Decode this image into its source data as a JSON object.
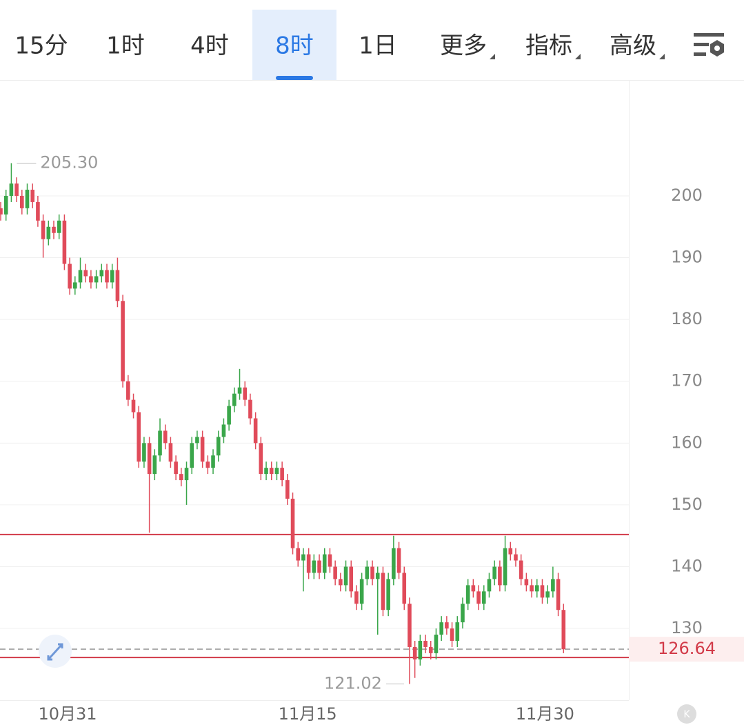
{
  "tabs": [
    "15分",
    "1时",
    "4时",
    "8时",
    "1日",
    "更多",
    "指标",
    "高级"
  ],
  "selected_tab": 3,
  "badge": "K",
  "chart_data": {
    "type": "candlestick",
    "up_color": "#3aa64a",
    "down_color": "#e04b5a",
    "open": [
      198,
      197,
      200,
      202,
      200,
      198,
      201,
      199,
      196,
      193,
      195,
      194,
      196,
      189,
      185,
      186,
      188,
      187,
      186,
      187,
      188,
      186,
      188,
      183,
      170,
      167,
      165,
      157,
      160,
      155,
      158,
      162,
      160,
      157,
      155,
      154,
      156,
      160,
      161,
      157,
      156,
      158,
      161,
      163,
      166,
      168,
      169,
      167,
      164,
      160,
      155,
      156,
      155,
      156,
      154,
      151,
      143,
      141,
      142,
      139,
      141,
      139,
      142,
      140,
      138,
      137,
      140,
      136,
      134,
      138,
      140,
      138,
      139,
      133,
      138,
      143,
      139,
      134,
      127,
      125,
      128,
      127,
      126,
      129,
      131,
      130,
      128,
      131,
      134,
      137,
      136,
      134,
      136,
      138,
      140,
      137,
      143,
      142,
      141,
      138,
      137,
      136,
      137,
      135,
      136,
      138,
      133
    ],
    "high": [
      199,
      201,
      205.3,
      203,
      201,
      202,
      202,
      200,
      197,
      196,
      196,
      197,
      197,
      190,
      187,
      190,
      189,
      188,
      188,
      189,
      189,
      189,
      190,
      184,
      171,
      168,
      166,
      161,
      161,
      159,
      164,
      163,
      161,
      158,
      156,
      157,
      161,
      162,
      162,
      158,
      159,
      162,
      164,
      167,
      169,
      172,
      170,
      168,
      165,
      161,
      157,
      157,
      157,
      157,
      155,
      152,
      144,
      143,
      143,
      142,
      142,
      143,
      143,
      141,
      139,
      141,
      141,
      137,
      139,
      141,
      141,
      140,
      140,
      139,
      145,
      144,
      140,
      135,
      128,
      129,
      129,
      128,
      130,
      132,
      132,
      131,
      132,
      135,
      138,
      138,
      137,
      137,
      139,
      141,
      141,
      145,
      144,
      143,
      142,
      139,
      138,
      138,
      138,
      137,
      140,
      139,
      134
    ],
    "low": [
      196,
      196,
      199,
      199,
      197,
      197,
      198,
      195,
      190,
      192,
      193,
      193,
      188,
      184,
      184,
      185,
      186,
      185,
      185,
      186,
      185,
      185,
      182,
      169,
      166,
      164,
      156,
      156,
      145.5,
      154,
      157,
      159,
      156,
      154,
      153,
      150,
      155,
      159,
      156,
      155,
      155,
      157,
      160,
      162,
      165,
      167,
      166,
      163,
      159,
      154,
      154,
      154,
      154,
      153,
      150,
      142,
      140,
      136,
      138,
      138,
      138,
      138,
      139,
      137,
      136,
      136,
      135,
      133,
      133,
      137,
      137,
      129,
      132,
      132,
      137,
      138,
      133,
      121.02,
      122,
      124,
      126,
      125,
      125,
      128,
      129,
      127,
      127,
      130,
      133,
      135,
      133,
      133,
      135,
      137,
      136,
      136,
      141,
      140,
      137,
      136,
      135,
      135,
      134,
      134,
      135,
      132,
      126
    ],
    "close": [
      197,
      200,
      202,
      200,
      198,
      201,
      199,
      196,
      193,
      195,
      194,
      196,
      189,
      185,
      186,
      188,
      187,
      186,
      187,
      188,
      186,
      188,
      183,
      170,
      167,
      165,
      157,
      160,
      155,
      158,
      162,
      160,
      157,
      155,
      154,
      156,
      160,
      161,
      157,
      156,
      158,
      161,
      163,
      166,
      168,
      169,
      167,
      164,
      160,
      155,
      156,
      155,
      156,
      154,
      151,
      143,
      141,
      142,
      139,
      141,
      139,
      142,
      140,
      138,
      137,
      140,
      136,
      134,
      138,
      140,
      138,
      139,
      133,
      138,
      143,
      139,
      134,
      127,
      125,
      128,
      127,
      126,
      129,
      131,
      130,
      128,
      131,
      134,
      137,
      136,
      134,
      136,
      138,
      140,
      137,
      143,
      142,
      141,
      138,
      137,
      136,
      137,
      135,
      136,
      138,
      133,
      126.64
    ],
    "xlim": [
      -0.13,
      118.3
    ],
    "xticks": [
      {
        "value": 12.6,
        "label": "10月31"
      },
      {
        "value": 57.8,
        "label": "11月15"
      },
      {
        "value": 102.5,
        "label": "11月30"
      }
    ],
    "ylim": [
      118.4,
      218.75
    ],
    "yticks": [
      130,
      140,
      150,
      160,
      170,
      180,
      190,
      200
    ],
    "grid": true,
    "high_mark": {
      "value": 205.3,
      "label": "205.30",
      "index": 2
    },
    "low_mark": {
      "value": 121.02,
      "label": "121.02",
      "index": 77
    },
    "last_price": {
      "value": 126.64,
      "label": "126.64"
    },
    "lines": [
      145.2,
      125.3
    ],
    "line_color": "#d23a48"
  }
}
